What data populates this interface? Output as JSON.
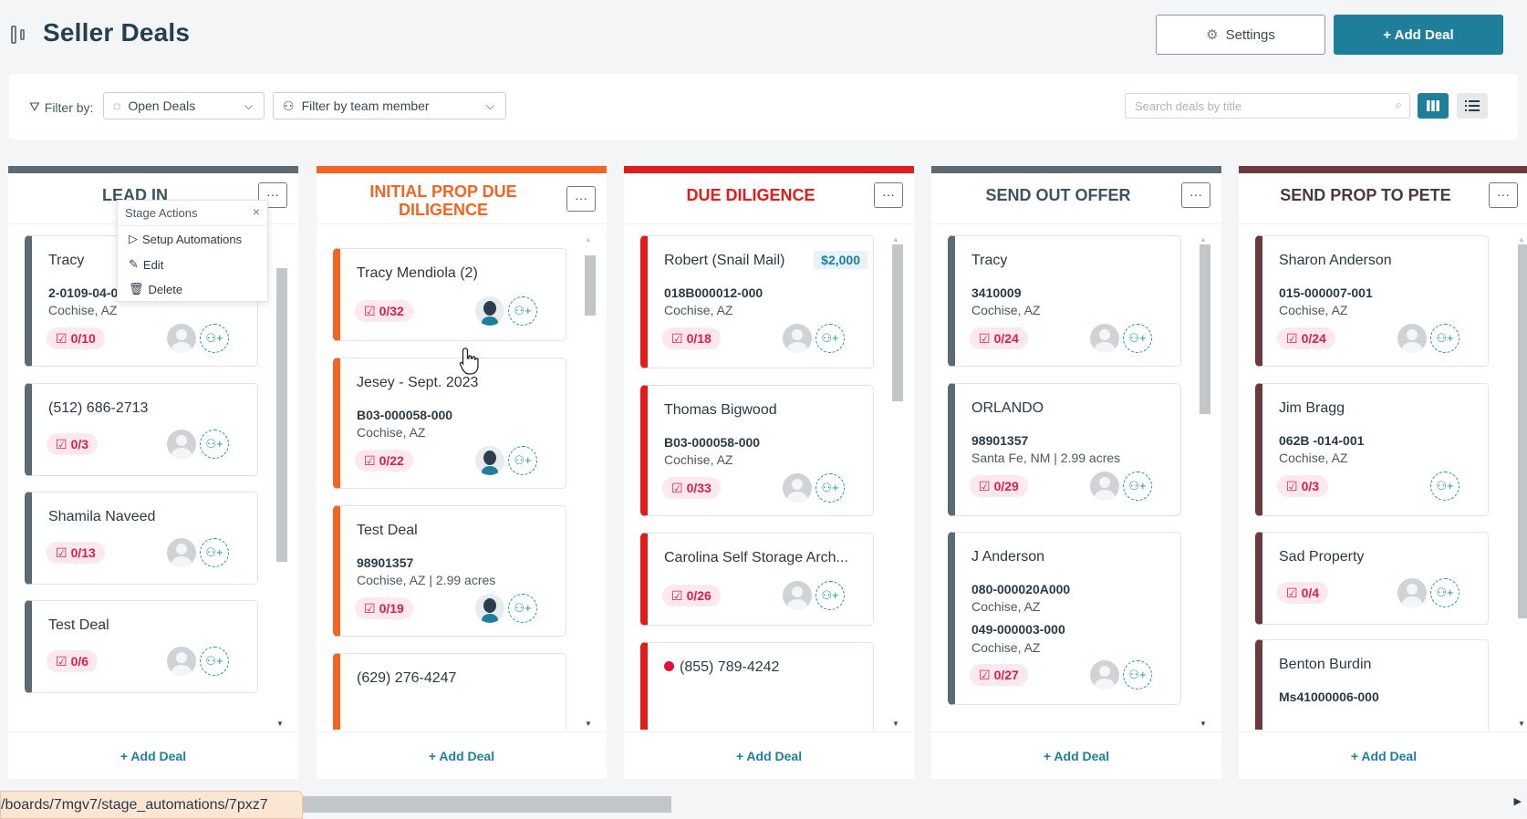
{
  "header": {
    "title": "Seller Deals",
    "settings_label": "Settings",
    "add_deal_label": "+ Add Deal"
  },
  "filters": {
    "filter_by_label": "Filter by:",
    "deal_status": "Open Deals",
    "team_member_placeholder": "Filter by team member",
    "search_placeholder": "Search deals by title"
  },
  "stage_actions": {
    "title": "Stage Actions",
    "items": [
      "Setup Automations",
      "Edit",
      "Delete"
    ]
  },
  "columns": [
    {
      "title": "LEAD IN",
      "color": "#5c6b73",
      "add_label": "+ Add Deal",
      "cards": [
        {
          "title": "Tracy",
          "code": "2-0109-04-0",
          "loc": "Cochise, AZ",
          "tasks": "0/10"
        },
        {
          "title": "(512) 686-2713",
          "tasks": "0/3"
        },
        {
          "title": "Shamila Naveed",
          "tasks": "0/13"
        },
        {
          "title": "Test Deal",
          "tasks": "0/6"
        }
      ]
    },
    {
      "title": "INITIAL PROP DUE DILIGENCE",
      "color": "#f26522",
      "add_label": "+ Add Deal",
      "cards": [
        {
          "title": "Tracy Mendiola (2)",
          "tasks": "0/32"
        },
        {
          "title": "Jesey - Sept. 2023",
          "code": "B03-000058-000",
          "loc": "Cochise, AZ",
          "tasks": "0/22"
        },
        {
          "title": "Test Deal",
          "code": "98901357",
          "loc": "Cochise, AZ | 2.99 acres",
          "tasks": "0/19"
        },
        {
          "title": "(629) 276-4247"
        }
      ]
    },
    {
      "title": "DUE DILIGENCE",
      "color": "#e11c1c",
      "add_label": "+ Add Deal",
      "cards": [
        {
          "title": "Robert (Snail Mail)",
          "price": "$2,000",
          "code": "018B000012-000",
          "loc": "Cochise, AZ",
          "tasks": "0/18"
        },
        {
          "title": "Thomas Bigwood",
          "code": "B03-000058-000",
          "loc": "Cochise, AZ",
          "tasks": "0/33"
        },
        {
          "title": "Carolina Self Storage Arch...",
          "tasks": "0/26"
        },
        {
          "title": "(855) 789-4242"
        }
      ]
    },
    {
      "title": "SEND OUT OFFER",
      "color": "#5c6b73",
      "add_label": "+ Add Deal",
      "cards": [
        {
          "title": "Tracy",
          "code": "3410009",
          "loc": "Cochise, AZ",
          "tasks": "0/24"
        },
        {
          "title": "ORLANDO",
          "code": "98901357",
          "loc": "Santa Fe, NM | 2.99 acres",
          "tasks": "0/29"
        },
        {
          "title": "J Anderson",
          "code": "080-000020A000",
          "loc": "Cochise, AZ",
          "code2": "049-000003-000",
          "loc2": "Cochise, AZ",
          "tasks": "0/27"
        }
      ]
    },
    {
      "title": "SEND PROP TO PETE",
      "color": "#6b3a3e",
      "add_label": "+ Add Deal",
      "cards": [
        {
          "title": "Sharon Anderson",
          "code": "015-000007-001",
          "loc": "Cochise, AZ",
          "tasks": "0/24"
        },
        {
          "title": "Jim Bragg",
          "code": "062B -014-001",
          "loc": "Cochise, AZ",
          "tasks": "0/3"
        },
        {
          "title": "Sad Property",
          "tasks": "0/4"
        },
        {
          "title": "Benton Burdin",
          "code": "Ms41000006-000"
        }
      ]
    }
  ],
  "status_url": "/boards/7mgv7/stage_automations/7pxz7"
}
